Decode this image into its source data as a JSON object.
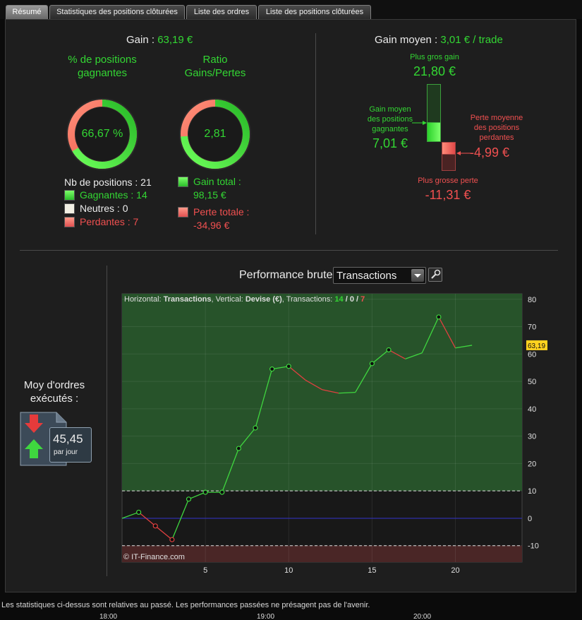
{
  "tabs": [
    {
      "label": "Résumé",
      "active": true
    },
    {
      "label": "Statistiques des positions clôturées",
      "active": false
    },
    {
      "label": "Liste des ordres",
      "active": false
    },
    {
      "label": "Liste des positions clôturées",
      "active": false
    }
  ],
  "summary": {
    "gain_label": "Gain :",
    "gain_value": "63,19 €",
    "pct_title": "% de positions gagnantes",
    "pct_value": "66,67 %",
    "pct_fraction": 0.6667,
    "ratio_title": "Ratio Gains/Pertes",
    "ratio_value": "2,81",
    "ratio_green_fraction": 0.7375,
    "positions_label": "Nb de positions : 21",
    "winners": "Gagnantes : 14",
    "neutral": "Neutres : 0",
    "losers": "Perdantes : 7",
    "total_gain_label": "Gain total :",
    "total_gain_value": "98,15 €",
    "total_loss_label": "Perte totale :",
    "total_loss_value": "-34,96 €"
  },
  "avg": {
    "label": "Gain moyen :",
    "value": "3,01 € / trade",
    "best_label": "Plus gros gain",
    "best_value": "21,80 €",
    "avg_win_label_1": "Gain moyen",
    "avg_win_label_2": "des positions",
    "avg_win_label_3": "gagnantes",
    "avg_win_value": "7,01 €",
    "avg_loss_label_1": "Perte moyenne",
    "avg_loss_label_2": "des positions",
    "avg_loss_label_3": "perdantes",
    "avg_loss_value": "-4,99 €",
    "worst_label": "Plus grosse perte",
    "worst_value": "-11,31 €"
  },
  "orders": {
    "title_1": "Moy d'ordres",
    "title_2": "exécutés :",
    "value": "45,45",
    "unit": "par jour"
  },
  "performance": {
    "title": "Performance brute",
    "select_value": "Transactions",
    "header_h": "Horizontal:",
    "header_h_val": "Transactions",
    "header_v": ", Vertical:",
    "header_v_val": "Devise (€)",
    "header_t": ", Transactions:",
    "header_win": "14",
    "header_sep1": "/",
    "header_neutral": "0",
    "header_sep2": "/",
    "header_loss": "7",
    "watermark": "© IT-Finance.com",
    "last_label": "63,19"
  },
  "chart_data": {
    "type": "line",
    "x": [
      0,
      1,
      2,
      3,
      4,
      5,
      6,
      7,
      8,
      9,
      10,
      11,
      12,
      13,
      14,
      15,
      16,
      17,
      18,
      19,
      20,
      21
    ],
    "y": [
      0,
      2.2,
      -2.8,
      -7.8,
      7.0,
      9.5,
      9.5,
      25.5,
      33.0,
      54.5,
      55.5,
      50.5,
      47.0,
      45.7,
      46.0,
      56.5,
      61.5,
      58.2,
      60.4,
      73.5,
      62.2,
      63.19
    ],
    "markers_x": [
      1,
      2,
      3,
      4,
      5,
      6,
      7,
      8,
      9,
      10,
      15,
      16,
      19
    ],
    "xticks": [
      5,
      10,
      15,
      20
    ],
    "yticks": [
      80,
      70,
      60,
      50,
      40,
      30,
      20,
      10,
      0,
      -10
    ],
    "xlim": [
      0,
      24
    ],
    "ylim": [
      -16,
      82
    ],
    "band_upper": 10,
    "band_lower": -10,
    "colors": {
      "up": "#3fd63f",
      "down": "#e04040",
      "zero": "#3333cc",
      "green_band": "#27532a",
      "red_band": "#4a2626"
    }
  },
  "disclaimer": "Les statistiques ci-dessus sont relatives au passé. Les performances passées ne présagent pas de l'avenir.",
  "clock": [
    "18:00",
    "19:00",
    "20:00"
  ]
}
